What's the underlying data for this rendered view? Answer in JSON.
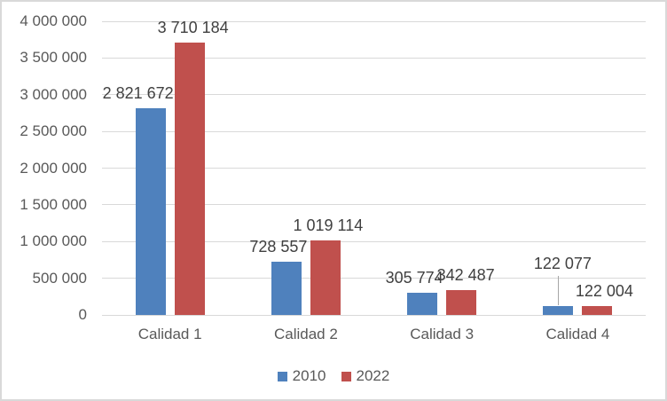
{
  "chart_data": {
    "type": "bar",
    "title": "",
    "categories": [
      "Calidad 1",
      "Calidad 2",
      "Calidad 3",
      "Calidad 4"
    ],
    "series": [
      {
        "name": "2010",
        "color": "#4F81BD",
        "values": [
          2821672,
          728557,
          305774,
          122077
        ],
        "labels": [
          "2 821 672",
          "728 557",
          "305 774",
          "122 077"
        ]
      },
      {
        "name": "2022",
        "color": "#C0504D",
        "values": [
          3710184,
          1019114,
          342487,
          122004
        ],
        "labels": [
          "3 710 184",
          "1 019 114",
          "342 487",
          "122 004"
        ]
      }
    ],
    "y_axis": {
      "min": 0,
      "max": 4000000,
      "step": 500000,
      "tick_labels": [
        "0",
        "500 000",
        "1 000 000",
        "1 500 000",
        "2 000 000",
        "2 500 000",
        "3 000 000",
        "3 500 000",
        "4 000 000"
      ]
    },
    "legend": {
      "position": "bottom",
      "entries": [
        "2010",
        "2022"
      ]
    },
    "grid": true,
    "colors": {
      "gridline": "#D9D9D9",
      "axis_line": "#D9D9D9",
      "tick_text": "#595959",
      "data_label_text": "#404040",
      "frame_border": "#D9D9D9",
      "leader_line": "#A6A6A6",
      "background": "#FFFFFF"
    }
  }
}
